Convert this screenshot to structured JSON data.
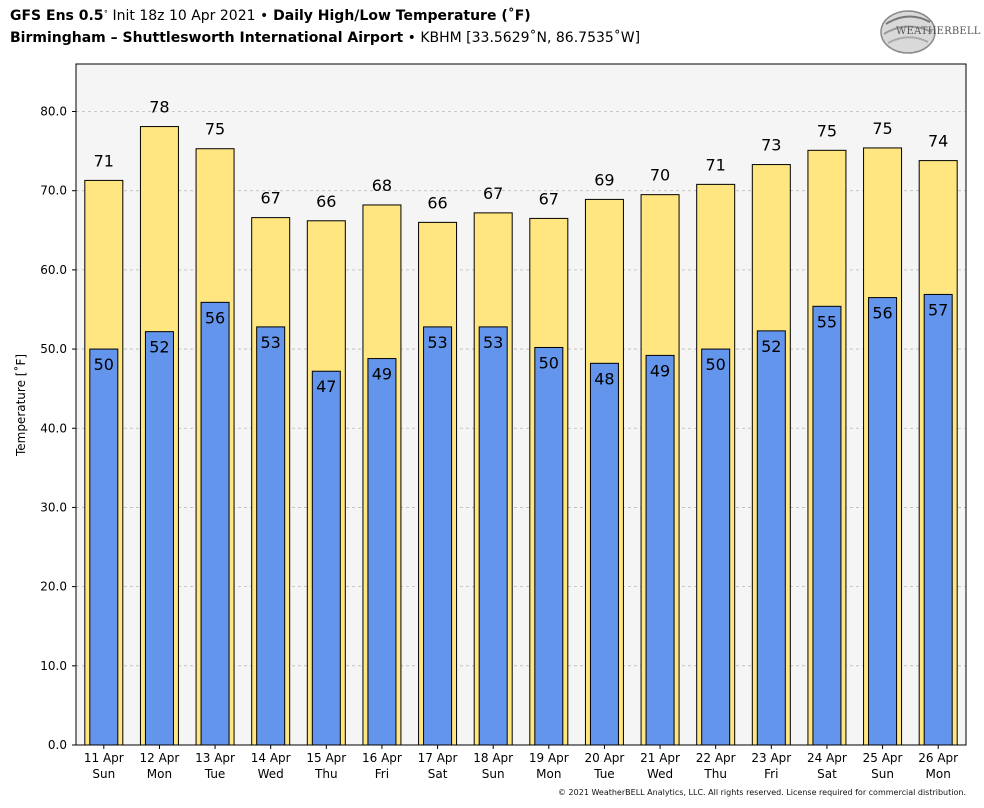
{
  "header": {
    "model": "GFS Ens 0.5",
    "deg": "˚",
    "init": " Init 18z 10 Apr 2021 ",
    "bullet": "•",
    "product": " Daily High/Low Temperature (˚F)",
    "location": "Birmingham – Shuttlesworth International Airport",
    "station": " • KBHM [33.5629˚N, 86.7535˚W]"
  },
  "logo": {
    "text": "WEATHERBELL",
    "icon": "weatherbell-swirl-logo"
  },
  "footer": {
    "copyright": "© 2021 WeatherBELL Analytics, LLC. All rights reserved. License required for commercial distribution."
  },
  "colors": {
    "high": "#FFE680",
    "low": "#6495ED",
    "plot_bg": "#F5F5F5",
    "outline": "#000000",
    "grid": "#BBBBBB"
  },
  "chart_data": {
    "type": "bar",
    "ylabel": "Temperature [˚F]",
    "xlabel": "",
    "ylim": [
      0,
      86
    ],
    "yticks": [
      "0.0",
      "10.0",
      "20.0",
      "30.0",
      "40.0",
      "50.0",
      "60.0",
      "70.0",
      "80.0"
    ],
    "grid": true,
    "categories": [
      "11 Apr",
      "12 Apr",
      "13 Apr",
      "14 Apr",
      "15 Apr",
      "16 Apr",
      "17 Apr",
      "18 Apr",
      "19 Apr",
      "20 Apr",
      "21 Apr",
      "22 Apr",
      "23 Apr",
      "24 Apr",
      "25 Apr",
      "26 Apr"
    ],
    "weekdays": [
      "Sun",
      "Mon",
      "Tue",
      "Wed",
      "Thu",
      "Fri",
      "Sat",
      "Sun",
      "Mon",
      "Tue",
      "Wed",
      "Thu",
      "Fri",
      "Sat",
      "Sun",
      "Mon"
    ],
    "series": [
      {
        "name": "High",
        "values": [
          71.3,
          78.1,
          75.3,
          66.6,
          66.2,
          68.2,
          66.0,
          67.2,
          66.5,
          68.9,
          69.5,
          70.8,
          73.3,
          75.1,
          75.4,
          73.8
        ],
        "labels": [
          "71",
          "78",
          "75",
          "67",
          "66",
          "68",
          "66",
          "67",
          "67",
          "69",
          "70",
          "71",
          "73",
          "75",
          "75",
          "74"
        ]
      },
      {
        "name": "Low",
        "values": [
          50.0,
          52.2,
          55.9,
          52.8,
          47.2,
          48.8,
          52.8,
          52.8,
          50.2,
          48.2,
          49.2,
          50.0,
          52.3,
          55.4,
          56.5,
          56.9
        ],
        "labels": [
          "50",
          "52",
          "56",
          "53",
          "47",
          "49",
          "53",
          "53",
          "50",
          "48",
          "49",
          "50",
          "52",
          "55",
          "56",
          "57"
        ]
      }
    ]
  }
}
